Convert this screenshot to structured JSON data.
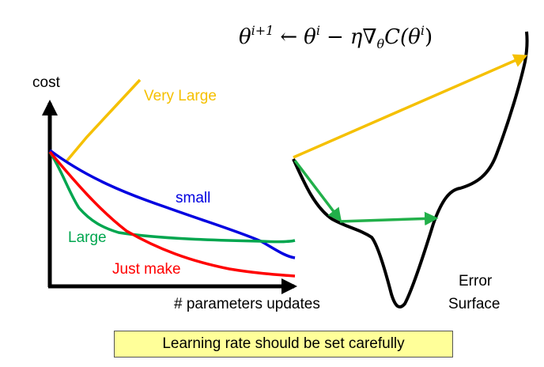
{
  "formula": {
    "lhs": "θ",
    "lhs_sup": "i+1",
    "arrow": "←",
    "rhs_theta": "θ",
    "rhs_sup1": "i",
    "minus": "−",
    "eta": "η",
    "nabla": "∇",
    "nabla_sub": "θ",
    "cost_fn": "C(θ",
    "rhs_sup2": "i",
    "close": ")"
  },
  "plot": {
    "y_label": "cost",
    "x_label": "# parameters updates",
    "curves": [
      {
        "name": "Very Large",
        "color": "#f5c000"
      },
      {
        "name": "small",
        "color": "#0000e0"
      },
      {
        "name": "Large",
        "color": "#00a64f"
      },
      {
        "name": "Just make",
        "color": "#ff0000"
      }
    ]
  },
  "surface": {
    "label_line1": "Error",
    "label_line2": "Surface",
    "surface_color": "#000000",
    "large_step_color": "#f5c000",
    "good_step_color": "#22b04a"
  },
  "caption": "Learning rate should be set carefully"
}
